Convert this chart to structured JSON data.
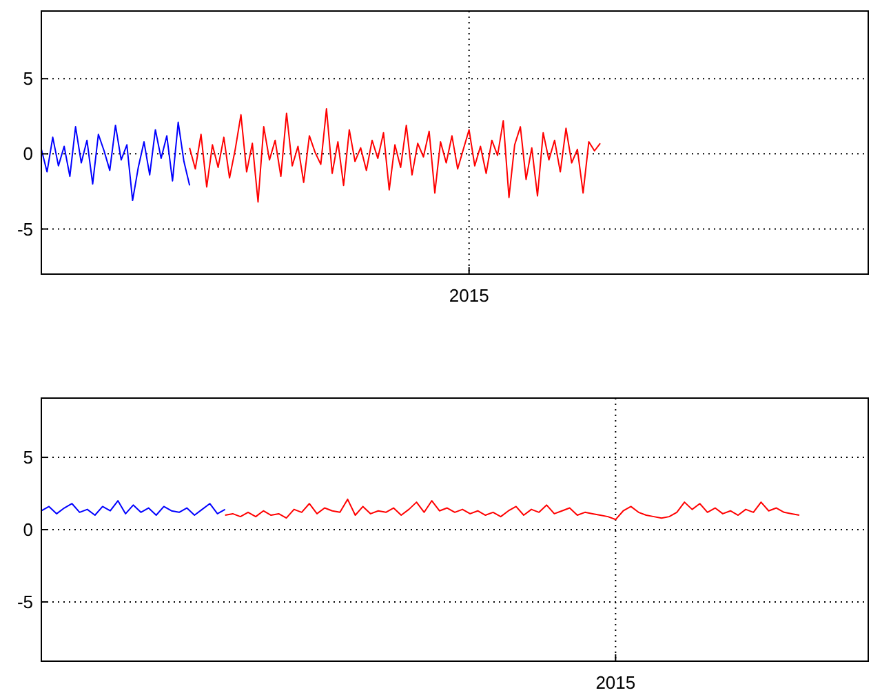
{
  "chart_data": [
    {
      "type": "line",
      "categories": [
        null,
        null,
        null,
        null,
        null,
        null,
        null,
        null,
        null,
        null,
        null,
        null,
        null,
        null,
        null,
        null,
        null,
        null,
        null,
        null,
        null,
        null,
        null,
        null,
        null,
        null,
        null,
        null,
        null,
        null,
        null,
        null,
        null,
        null,
        null,
        null,
        null,
        null,
        null,
        null,
        null,
        null,
        null,
        null,
        null,
        null,
        null,
        null,
        null,
        null,
        null,
        null,
        null,
        null,
        null,
        null,
        null,
        null,
        null,
        null,
        null,
        null,
        null,
        null,
        null,
        null,
        null,
        null,
        null,
        null,
        null,
        null,
        null,
        null,
        null,
        "2015",
        null,
        null,
        null,
        null,
        null,
        null,
        null,
        null,
        null,
        null,
        null,
        null,
        null,
        null,
        null,
        null,
        null,
        null,
        null,
        null,
        null,
        null,
        null,
        null,
        null,
        null,
        null,
        null,
        null,
        null,
        null,
        null,
        null,
        null,
        null,
        null,
        null,
        null,
        null,
        null,
        null,
        null,
        null,
        null,
        null,
        null,
        null,
        null,
        null,
        null,
        null,
        null,
        null,
        null,
        null,
        null,
        null,
        null,
        null,
        null,
        null,
        null,
        null,
        null,
        null,
        null,
        null,
        null,
        null,
        null
      ],
      "ylim": [
        -8,
        9.5
      ],
      "yticks": [
        -5,
        0,
        5
      ],
      "grid": true,
      "series": [
        {
          "color": "#0000ff",
          "values": [
            0.3,
            -1.2,
            1.1,
            -0.8,
            0.5,
            -1.5,
            1.8,
            -0.6,
            0.9,
            -2.0,
            1.3,
            0.2,
            -1.1,
            1.9,
            -0.4,
            0.6,
            -3.1,
            -0.9,
            0.8,
            -1.4,
            1.6,
            -0.3,
            1.2,
            -1.8,
            2.1,
            -0.5,
            -2.1,
            null,
            null,
            null,
            null,
            null,
            null,
            null,
            null,
            null,
            null,
            null,
            null,
            null,
            null,
            null,
            null,
            null,
            null,
            null,
            null,
            null,
            null,
            null,
            null,
            null,
            null,
            null,
            null,
            null,
            null,
            null,
            null,
            null,
            null,
            null,
            null,
            null,
            null,
            null,
            null,
            null,
            null,
            null,
            null,
            null,
            null,
            null,
            null,
            null,
            null,
            null,
            null,
            null,
            null,
            null,
            null,
            null,
            null,
            null,
            null,
            null,
            null,
            null,
            null,
            null,
            null,
            null,
            null,
            null,
            null,
            null,
            null,
            null,
            null,
            null,
            null,
            null,
            null,
            null,
            null,
            null,
            null,
            null,
            null,
            null,
            null,
            null,
            null,
            null,
            null,
            null,
            null,
            null,
            null,
            null,
            null,
            null,
            null,
            null,
            null,
            null,
            null,
            null,
            null,
            null,
            null,
            null,
            null,
            null,
            null,
            null,
            null,
            null,
            null,
            null,
            null,
            null,
            null,
            null
          ]
        },
        {
          "color": "#ff0000",
          "values": [
            null,
            null,
            null,
            null,
            null,
            null,
            null,
            null,
            null,
            null,
            null,
            null,
            null,
            null,
            null,
            null,
            null,
            null,
            null,
            null,
            null,
            null,
            null,
            null,
            null,
            null,
            0.4,
            -1.0,
            1.3,
            -2.2,
            0.6,
            -0.9,
            1.1,
            -1.6,
            0.3,
            2.6,
            -1.2,
            0.7,
            -3.2,
            1.8,
            -0.4,
            0.9,
            -1.5,
            2.7,
            -0.8,
            0.5,
            -1.9,
            1.2,
            0.1,
            -0.7,
            3.0,
            -1.3,
            0.8,
            -2.1,
            1.6,
            -0.5,
            0.4,
            -1.1,
            0.9,
            -0.3,
            1.4,
            -2.4,
            0.6,
            -0.9,
            1.9,
            -1.4,
            0.7,
            -0.2,
            1.5,
            -2.6,
            0.8,
            -0.6,
            1.2,
            -1.0,
            0.3,
            1.6,
            -0.8,
            0.5,
            -1.3,
            0.9,
            -0.1,
            2.2,
            -2.9,
            0.6,
            1.8,
            -1.7,
            0.4,
            -2.8,
            1.4,
            -0.4,
            0.9,
            -1.2,
            1.7,
            -0.6,
            0.3,
            -2.6,
            0.8,
            0.2,
            0.7,
            null,
            null,
            null,
            null,
            null,
            null,
            null,
            null,
            null,
            null,
            null,
            null,
            null,
            null,
            null,
            null,
            null,
            null,
            null,
            null,
            null,
            null,
            null,
            null,
            null,
            null,
            null,
            null,
            null,
            null,
            null,
            null,
            null,
            null,
            null,
            null,
            null,
            null,
            null,
            null,
            null,
            null,
            null,
            null,
            null,
            null,
            null
          ]
        }
      ]
    },
    {
      "type": "line",
      "categories": [
        null,
        null,
        null,
        null,
        null,
        null,
        null,
        null,
        null,
        null,
        null,
        null,
        null,
        null,
        null,
        null,
        null,
        null,
        null,
        null,
        null,
        null,
        null,
        null,
        null,
        null,
        null,
        null,
        null,
        null,
        null,
        null,
        null,
        null,
        null,
        null,
        null,
        null,
        null,
        null,
        null,
        null,
        null,
        null,
        null,
        null,
        null,
        null,
        null,
        null,
        null,
        null,
        null,
        null,
        null,
        null,
        null,
        null,
        null,
        null,
        null,
        null,
        null,
        null,
        null,
        null,
        null,
        null,
        null,
        null,
        null,
        null,
        null,
        null,
        null,
        "2015",
        null,
        null,
        null,
        null,
        null,
        null,
        null,
        null,
        null,
        null,
        null,
        null,
        null,
        null,
        null,
        null,
        null,
        null,
        null,
        null,
        null,
        null,
        null,
        null,
        null,
        null,
        null,
        null,
        null,
        null,
        null,
        null,
        null
      ],
      "ylim": [
        -9.1,
        9.1
      ],
      "yticks": [
        -5,
        0,
        5
      ],
      "grid": true,
      "series": [
        {
          "color": "#0000ff",
          "values": [
            1.3,
            1.6,
            1.1,
            1.5,
            1.8,
            1.2,
            1.4,
            1.0,
            1.6,
            1.3,
            2.0,
            1.1,
            1.7,
            1.2,
            1.5,
            1.0,
            1.6,
            1.3,
            1.2,
            1.5,
            1.0,
            1.4,
            1.8,
            1.1,
            1.4,
            null,
            null,
            null,
            null,
            null,
            null,
            null,
            null,
            null,
            null,
            null,
            null,
            null,
            null,
            null,
            null,
            null,
            null,
            null,
            null,
            null,
            null,
            null,
            null,
            null,
            null,
            null,
            null,
            null,
            null,
            null,
            null,
            null,
            null,
            null,
            null,
            null,
            null,
            null,
            null,
            null,
            null,
            null,
            null,
            null,
            null,
            null,
            null,
            null,
            null,
            null,
            null,
            null,
            null,
            null,
            null,
            null,
            null,
            null,
            null,
            null,
            null,
            null,
            null,
            null,
            null,
            null,
            null,
            null,
            null,
            null,
            null,
            null,
            null,
            null,
            null,
            null,
            null,
            null,
            null,
            null,
            null,
            null,
            null
          ]
        },
        {
          "color": "#ff0000",
          "values": [
            null,
            null,
            null,
            null,
            null,
            null,
            null,
            null,
            null,
            null,
            null,
            null,
            null,
            null,
            null,
            null,
            null,
            null,
            null,
            null,
            null,
            null,
            null,
            null,
            1.0,
            1.1,
            0.9,
            1.2,
            0.9,
            1.3,
            1.0,
            1.1,
            0.8,
            1.4,
            1.2,
            1.8,
            1.1,
            1.5,
            1.3,
            1.2,
            2.1,
            1.0,
            1.6,
            1.1,
            1.3,
            1.2,
            1.5,
            1.0,
            1.4,
            1.9,
            1.2,
            2.0,
            1.3,
            1.5,
            1.2,
            1.4,
            1.1,
            1.3,
            1.0,
            1.2,
            0.9,
            1.3,
            1.6,
            1.0,
            1.4,
            1.2,
            1.7,
            1.1,
            1.3,
            1.5,
            1.0,
            1.2,
            1.1,
            1.0,
            0.9,
            0.7,
            1.3,
            1.6,
            1.2,
            1.0,
            0.9,
            0.8,
            0.9,
            1.2,
            1.9,
            1.4,
            1.8,
            1.2,
            1.5,
            1.1,
            1.3,
            1.0,
            1.4,
            1.2,
            1.9,
            1.3,
            1.5,
            1.2,
            1.1,
            1.0,
            null,
            null,
            null,
            null,
            null,
            null,
            null,
            null,
            null
          ]
        }
      ]
    }
  ]
}
